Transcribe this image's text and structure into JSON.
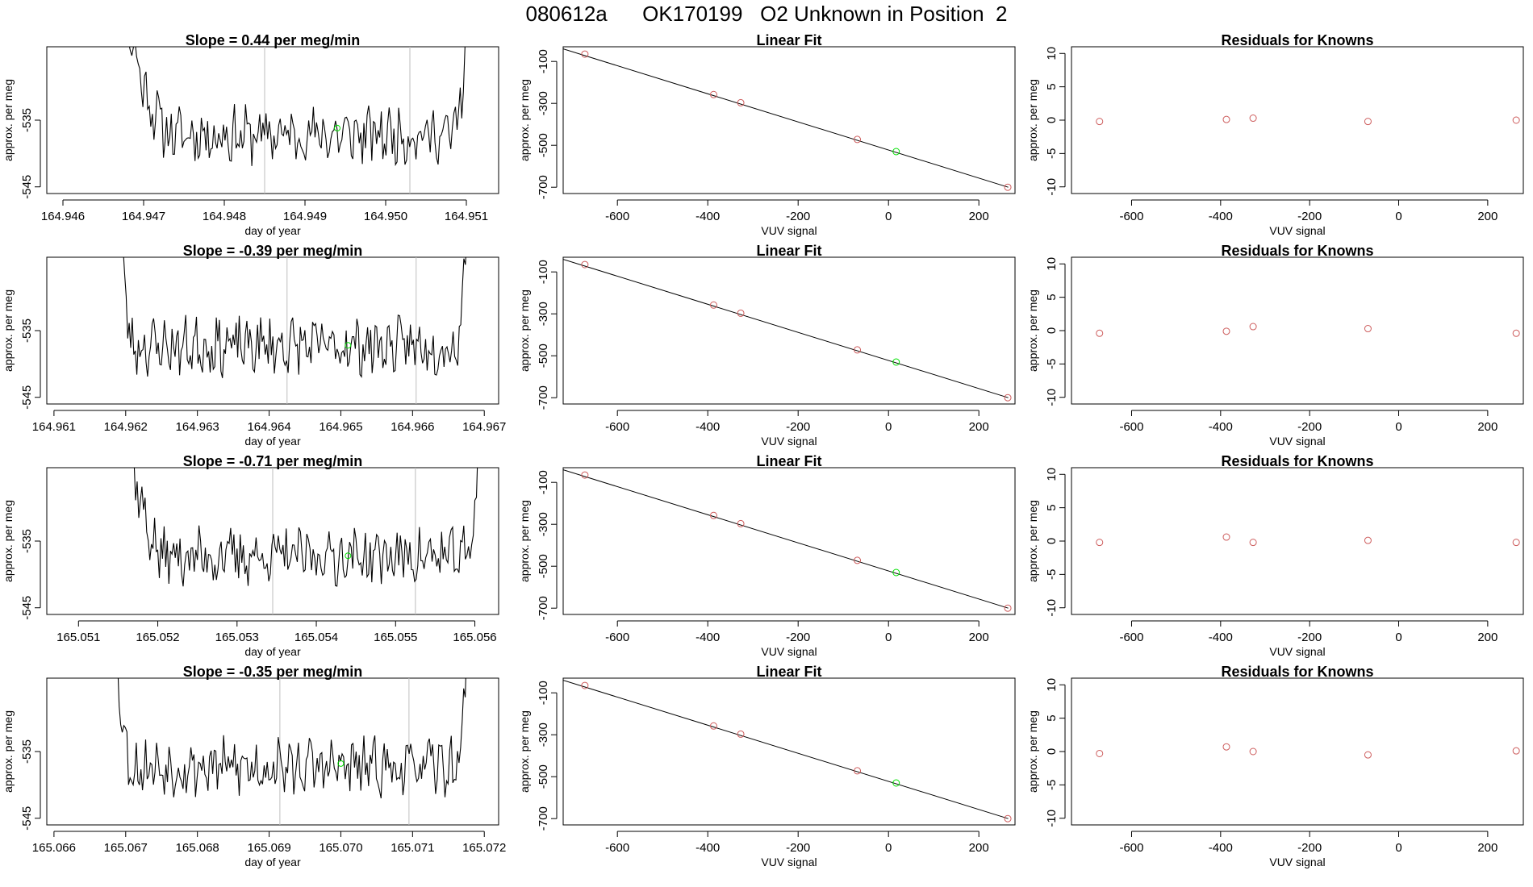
{
  "page_title": {
    "run_id": "080612a",
    "tank_id": "OK170199",
    "description": "O2 Unknown in Position  2"
  },
  "colors": {
    "series_line": "#000000",
    "known_point": "#cd5c5c",
    "unknown_point": "#00e000",
    "vertical_marker": "#bebebe"
  },
  "chart_data": [
    {
      "type": "line",
      "row": 0,
      "title": "Slope =  0.44  per meg/min",
      "xlabel": "day of year",
      "ylabel": "approx. per meg",
      "xlim": [
        164.9458,
        164.9514
      ],
      "ylim": [
        -546,
        -524
      ],
      "xticks": [
        164.946,
        164.947,
        164.948,
        164.949,
        164.95,
        164.951
      ],
      "xtick_labels": [
        "164.946",
        "164.947",
        "164.948",
        "164.949",
        "164.950",
        "164.951"
      ],
      "yticks": [
        -535,
        -545
      ],
      "ytick_labels": [
        "-535",
        "-545"
      ],
      "series_range": [
        164.9466,
        164.9511
      ],
      "plateau_range": [
        164.9474,
        164.9508
      ],
      "series_level": -537.2,
      "vertical_lines": [
        164.9485,
        164.9503
      ],
      "unknown_point": {
        "x": 164.9494,
        "y": -536.2
      },
      "seed": 11
    },
    {
      "type": "scatter",
      "row": 0,
      "title": "Linear Fit",
      "xlabel": "VUV signal",
      "ylabel": "approx. per meg",
      "xlim": [
        -720,
        280
      ],
      "ylim": [
        -730,
        -30
      ],
      "xticks": [
        -600,
        -400,
        -200,
        0,
        200
      ],
      "xtick_labels": [
        "-600",
        "-400",
        "-200",
        "0",
        "200"
      ],
      "yticks": [
        -100,
        -300,
        -500,
        -700
      ],
      "ytick_labels": [
        "-100",
        "-300",
        "-500",
        "-700"
      ],
      "fit_line": {
        "x": [
          -720,
          265
        ],
        "y": [
          -40,
          -700
        ]
      },
      "known_points": {
        "x": [
          -672,
          -387,
          -327,
          -69,
          264
        ],
        "y": [
          -65,
          -258,
          -297,
          -472,
          -700
        ]
      },
      "unknown_point": {
        "x": 17,
        "y": -530
      }
    },
    {
      "type": "scatter",
      "row": 0,
      "title": "Residuals for Knowns",
      "xlabel": "VUV signal",
      "ylabel": "approx. per meg",
      "xlim": [
        -735,
        280
      ],
      "ylim": [
        -11,
        11
      ],
      "xticks": [
        -600,
        -400,
        -200,
        0,
        200
      ],
      "xtick_labels": [
        "-600",
        "-400",
        "-200",
        "0",
        "200"
      ],
      "yticks": [
        10,
        5,
        0,
        -5,
        -10
      ],
      "ytick_labels": [
        "10",
        "5",
        "0",
        "-5",
        "-10"
      ],
      "points": {
        "x": [
          -672,
          -387,
          -327,
          -69,
          264
        ],
        "y": [
          -0.2,
          0.1,
          0.3,
          -0.2,
          0.0
        ]
      }
    },
    {
      "type": "line",
      "row": 1,
      "title": "Slope =  -0.39  per meg/min",
      "xlabel": "day of year",
      "ylabel": "approx. per meg",
      "xlim": [
        164.9609,
        164.9672
      ],
      "ylim": [
        -546,
        -524
      ],
      "xticks": [
        164.961,
        164.962,
        164.963,
        164.964,
        164.965,
        164.966,
        164.967
      ],
      "xtick_labels": [
        "164.961",
        "164.962",
        "164.963",
        "164.964",
        "164.965",
        "164.966",
        "164.967"
      ],
      "yticks": [
        -535,
        -545
      ],
      "ytick_labels": [
        "-535",
        "-545"
      ],
      "series_range": [
        164.9619,
        164.9668
      ],
      "plateau_range": [
        164.9621,
        164.9666
      ],
      "series_level": -537.3,
      "vertical_lines": [
        164.96425,
        164.96605
      ],
      "unknown_point": {
        "x": 164.9651,
        "y": -537.2
      },
      "seed": 23
    },
    {
      "type": "scatter",
      "row": 1,
      "title": "Linear Fit",
      "xlabel": "VUV signal",
      "ylabel": "approx. per meg",
      "xlim": [
        -720,
        280
      ],
      "ylim": [
        -730,
        -30
      ],
      "xticks": [
        -600,
        -400,
        -200,
        0,
        200
      ],
      "xtick_labels": [
        "-600",
        "-400",
        "-200",
        "0",
        "200"
      ],
      "yticks": [
        -100,
        -300,
        -500,
        -700
      ],
      "ytick_labels": [
        "-100",
        "-300",
        "-500",
        "-700"
      ],
      "fit_line": {
        "x": [
          -720,
          265
        ],
        "y": [
          -40,
          -700
        ]
      },
      "known_points": {
        "x": [
          -672,
          -387,
          -327,
          -69,
          264
        ],
        "y": [
          -65,
          -258,
          -297,
          -472,
          -700
        ]
      },
      "unknown_point": {
        "x": 17,
        "y": -530
      }
    },
    {
      "type": "scatter",
      "row": 1,
      "title": "Residuals for Knowns",
      "xlabel": "VUV signal",
      "ylabel": "approx. per meg",
      "xlim": [
        -735,
        280
      ],
      "ylim": [
        -11,
        11
      ],
      "xticks": [
        -600,
        -400,
        -200,
        0,
        200
      ],
      "xtick_labels": [
        "-600",
        "-400",
        "-200",
        "0",
        "200"
      ],
      "yticks": [
        10,
        5,
        0,
        -5,
        -10
      ],
      "ytick_labels": [
        "10",
        "5",
        "0",
        "-5",
        "-10"
      ],
      "points": {
        "x": [
          -672,
          -387,
          -327,
          -69,
          264
        ],
        "y": [
          -0.4,
          -0.1,
          0.6,
          0.3,
          -0.4
        ]
      }
    },
    {
      "type": "line",
      "row": 2,
      "title": "Slope =  -0.71  per meg/min",
      "xlabel": "day of year",
      "ylabel": "approx. per meg",
      "xlim": [
        165.0506,
        165.0563
      ],
      "ylim": [
        -546,
        -524
      ],
      "xticks": [
        165.051,
        165.052,
        165.053,
        165.054,
        165.055,
        165.056
      ],
      "xtick_labels": [
        "165.051",
        "165.052",
        "165.053",
        "165.054",
        "165.055",
        "165.056"
      ],
      "yticks": [
        -535,
        -545
      ],
      "ytick_labels": [
        "-535",
        "-545"
      ],
      "series_range": [
        165.0515,
        165.0561
      ],
      "plateau_range": [
        165.0521,
        165.0559
      ],
      "series_level": -537.3,
      "vertical_lines": [
        165.05345,
        165.05525
      ],
      "unknown_point": {
        "x": 165.0544,
        "y": -537.2
      },
      "seed": 37
    },
    {
      "type": "scatter",
      "row": 2,
      "title": "Linear Fit",
      "xlabel": "VUV signal",
      "ylabel": "approx. per meg",
      "xlim": [
        -720,
        280
      ],
      "ylim": [
        -730,
        -30
      ],
      "xticks": [
        -600,
        -400,
        -200,
        0,
        200
      ],
      "xtick_labels": [
        "-600",
        "-400",
        "-200",
        "0",
        "200"
      ],
      "yticks": [
        -100,
        -300,
        -500,
        -700
      ],
      "ytick_labels": [
        "-100",
        "-300",
        "-500",
        "-700"
      ],
      "fit_line": {
        "x": [
          -720,
          265
        ],
        "y": [
          -40,
          -700
        ]
      },
      "known_points": {
        "x": [
          -672,
          -387,
          -327,
          -69,
          264
        ],
        "y": [
          -65,
          -258,
          -297,
          -472,
          -700
        ]
      },
      "unknown_point": {
        "x": 17,
        "y": -530
      }
    },
    {
      "type": "scatter",
      "row": 2,
      "title": "Residuals for Knowns",
      "xlabel": "VUV signal",
      "ylabel": "approx. per meg",
      "xlim": [
        -735,
        280
      ],
      "ylim": [
        -11,
        11
      ],
      "xticks": [
        -600,
        -400,
        -200,
        0,
        200
      ],
      "xtick_labels": [
        "-600",
        "-400",
        "-200",
        "0",
        "200"
      ],
      "yticks": [
        10,
        5,
        0,
        -5,
        -10
      ],
      "ytick_labels": [
        "10",
        "5",
        "0",
        "-5",
        "-10"
      ],
      "points": {
        "x": [
          -672,
          -387,
          -327,
          -69,
          264
        ],
        "y": [
          -0.2,
          0.6,
          -0.2,
          0.1,
          -0.2
        ]
      }
    },
    {
      "type": "line",
      "row": 3,
      "title": "Slope =  -0.35  per meg/min",
      "xlabel": "day of year",
      "ylabel": "approx. per meg",
      "xlim": [
        165.0659,
        165.0722
      ],
      "ylim": [
        -546,
        -524
      ],
      "xticks": [
        165.066,
        165.067,
        165.068,
        165.069,
        165.07,
        165.071,
        165.072
      ],
      "xtick_labels": [
        "165.066",
        "165.067",
        "165.068",
        "165.069",
        "165.070",
        "165.071",
        "165.072"
      ],
      "yticks": [
        -535,
        -545
      ],
      "ytick_labels": [
        "-535",
        "-545"
      ],
      "series_range": [
        165.0668,
        165.0718
      ],
      "plateau_range": [
        165.0671,
        165.0716
      ],
      "series_level": -537.3,
      "vertical_lines": [
        165.06915,
        165.07095
      ],
      "unknown_point": {
        "x": 165.07,
        "y": -536.8
      },
      "seed": 53
    },
    {
      "type": "scatter",
      "row": 3,
      "title": "Linear Fit",
      "xlabel": "VUV signal",
      "ylabel": "approx. per meg",
      "xlim": [
        -720,
        280
      ],
      "ylim": [
        -730,
        -30
      ],
      "xticks": [
        -600,
        -400,
        -200,
        0,
        200
      ],
      "xtick_labels": [
        "-600",
        "-400",
        "-200",
        "0",
        "200"
      ],
      "yticks": [
        -100,
        -300,
        -500,
        -700
      ],
      "ytick_labels": [
        "-100",
        "-300",
        "-500",
        "-700"
      ],
      "fit_line": {
        "x": [
          -720,
          265
        ],
        "y": [
          -40,
          -700
        ]
      },
      "known_points": {
        "x": [
          -672,
          -387,
          -327,
          -69,
          264
        ],
        "y": [
          -65,
          -258,
          -297,
          -472,
          -700
        ]
      },
      "unknown_point": {
        "x": 17,
        "y": -530
      }
    },
    {
      "type": "scatter",
      "row": 3,
      "title": "Residuals for Knowns",
      "xlabel": "VUV signal",
      "ylabel": "approx. per meg",
      "xlim": [
        -735,
        280
      ],
      "ylim": [
        -11,
        11
      ],
      "xticks": [
        -600,
        -400,
        -200,
        0,
        200
      ],
      "xtick_labels": [
        "-600",
        "-400",
        "-200",
        "0",
        "200"
      ],
      "yticks": [
        10,
        5,
        0,
        -5,
        -10
      ],
      "ytick_labels": [
        "10",
        "5",
        "0",
        "-5",
        "-10"
      ],
      "points": {
        "x": [
          -672,
          -387,
          -327,
          -69,
          264
        ],
        "y": [
          -0.3,
          0.7,
          0.0,
          -0.5,
          0.1
        ]
      }
    }
  ]
}
